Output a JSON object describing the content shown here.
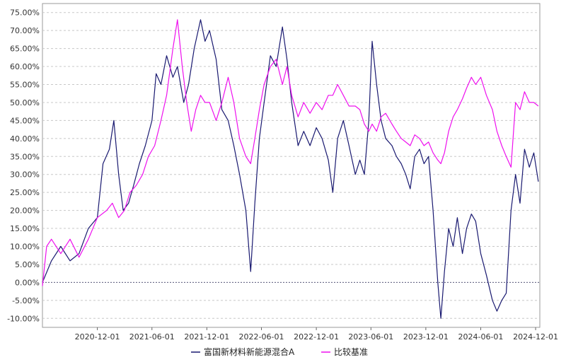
{
  "chart_data": {
    "type": "line",
    "title": "",
    "xlabel": "",
    "ylabel": "",
    "ylim": [
      -12.5,
      77.5
    ],
    "y_ticks": [
      "75.00%",
      "70.00%",
      "65.00%",
      "60.00%",
      "55.00%",
      "50.00%",
      "45.00%",
      "40.00%",
      "35.00%",
      "30.00%",
      "25.00%",
      "20.00%",
      "15.00%",
      "10.00%",
      "5.00%",
      "0.00%",
      "-5.00%",
      "-10.00%"
    ],
    "y_tick_values": [
      75,
      70,
      65,
      60,
      55,
      50,
      45,
      40,
      35,
      30,
      25,
      20,
      15,
      10,
      5,
      0,
      -5,
      -10
    ],
    "x_ticks": [
      "2020-12-01",
      "2021-06-01",
      "2021-12-01",
      "2022-06-01",
      "2022-12-01",
      "2023-06-01",
      "2023-12-01",
      "2024-06-01",
      "2024-12-01"
    ],
    "x_range": [
      "2020-06-01",
      "2024-12-15"
    ],
    "grid": "horizontal dashed",
    "legend_position": "bottom-center",
    "series": [
      {
        "name": "富国新材料新能源混合A",
        "color": "#191970",
        "points": [
          [
            "2020-06-01",
            0
          ],
          [
            "2020-07-01",
            6
          ],
          [
            "2020-08-01",
            10
          ],
          [
            "2020-09-01",
            6
          ],
          [
            "2020-10-01",
            8
          ],
          [
            "2020-11-01",
            15
          ],
          [
            "2020-12-01",
            18
          ],
          [
            "2020-12-20",
            33
          ],
          [
            "2021-01-10",
            37
          ],
          [
            "2021-01-25",
            45
          ],
          [
            "2021-02-10",
            30
          ],
          [
            "2021-02-25",
            20
          ],
          [
            "2021-03-15",
            22
          ],
          [
            "2021-04-01",
            27
          ],
          [
            "2021-04-20",
            33
          ],
          [
            "2021-05-10",
            38
          ],
          [
            "2021-06-01",
            45
          ],
          [
            "2021-06-15",
            58
          ],
          [
            "2021-07-01",
            55
          ],
          [
            "2021-07-20",
            63
          ],
          [
            "2021-08-10",
            57
          ],
          [
            "2021-08-25",
            60
          ],
          [
            "2021-09-15",
            50
          ],
          [
            "2021-10-01",
            55
          ],
          [
            "2021-10-20",
            65
          ],
          [
            "2021-11-10",
            73
          ],
          [
            "2021-11-25",
            67
          ],
          [
            "2021-12-10",
            70
          ],
          [
            "2022-01-01",
            62
          ],
          [
            "2022-01-20",
            48
          ],
          [
            "2022-02-10",
            45
          ],
          [
            "2022-03-01",
            38
          ],
          [
            "2022-03-20",
            30
          ],
          [
            "2022-04-10",
            20
          ],
          [
            "2022-04-26",
            3
          ],
          [
            "2022-05-10",
            22
          ],
          [
            "2022-05-25",
            40
          ],
          [
            "2022-06-10",
            50
          ],
          [
            "2022-07-01",
            63
          ],
          [
            "2022-07-20",
            60
          ],
          [
            "2022-08-10",
            71
          ],
          [
            "2022-08-25",
            62
          ],
          [
            "2022-09-10",
            50
          ],
          [
            "2022-10-01",
            38
          ],
          [
            "2022-10-20",
            42
          ],
          [
            "2022-11-10",
            38
          ],
          [
            "2022-12-01",
            43
          ],
          [
            "2022-12-20",
            40
          ],
          [
            "2023-01-10",
            34
          ],
          [
            "2023-01-25",
            25
          ],
          [
            "2023-02-10",
            40
          ],
          [
            "2023-03-01",
            45
          ],
          [
            "2023-03-20",
            38
          ],
          [
            "2023-04-10",
            30
          ],
          [
            "2023-04-25",
            34
          ],
          [
            "2023-05-10",
            30
          ],
          [
            "2023-05-25",
            45
          ],
          [
            "2023-06-05",
            67
          ],
          [
            "2023-06-20",
            55
          ],
          [
            "2023-07-05",
            45
          ],
          [
            "2023-07-20",
            40
          ],
          [
            "2023-08-10",
            38
          ],
          [
            "2023-08-25",
            35
          ],
          [
            "2023-09-10",
            33
          ],
          [
            "2023-09-25",
            30
          ],
          [
            "2023-10-10",
            26
          ],
          [
            "2023-10-25",
            35
          ],
          [
            "2023-11-10",
            37
          ],
          [
            "2023-11-25",
            33
          ],
          [
            "2023-12-10",
            35
          ],
          [
            "2023-12-25",
            20
          ],
          [
            "2024-01-10",
            0
          ],
          [
            "2024-01-20",
            -10
          ],
          [
            "2024-02-01",
            3
          ],
          [
            "2024-02-15",
            15
          ],
          [
            "2024-03-01",
            10
          ],
          [
            "2024-03-15",
            18
          ],
          [
            "2024-04-01",
            8
          ],
          [
            "2024-04-15",
            15
          ],
          [
            "2024-05-01",
            19
          ],
          [
            "2024-05-15",
            17
          ],
          [
            "2024-06-01",
            8
          ],
          [
            "2024-06-20",
            2
          ],
          [
            "2024-07-10",
            -5
          ],
          [
            "2024-07-25",
            -8
          ],
          [
            "2024-08-10",
            -5
          ],
          [
            "2024-08-25",
            -3
          ],
          [
            "2024-09-10",
            20
          ],
          [
            "2024-09-25",
            30
          ],
          [
            "2024-10-10",
            22
          ],
          [
            "2024-10-25",
            37
          ],
          [
            "2024-11-10",
            32
          ],
          [
            "2024-11-25",
            36
          ],
          [
            "2024-12-10",
            28
          ]
        ]
      },
      {
        "name": "比较基准",
        "color": "#ee10ee",
        "points": [
          [
            "2020-06-01",
            -1
          ],
          [
            "2020-06-15",
            10
          ],
          [
            "2020-07-01",
            12
          ],
          [
            "2020-08-01",
            8
          ],
          [
            "2020-09-01",
            12
          ],
          [
            "2020-10-01",
            7
          ],
          [
            "2020-11-01",
            12
          ],
          [
            "2020-12-01",
            18
          ],
          [
            "2021-01-01",
            20
          ],
          [
            "2021-01-20",
            22
          ],
          [
            "2021-02-10",
            18
          ],
          [
            "2021-03-01",
            20
          ],
          [
            "2021-03-20",
            25
          ],
          [
            "2021-04-10",
            27
          ],
          [
            "2021-05-01",
            30
          ],
          [
            "2021-05-20",
            35
          ],
          [
            "2021-06-10",
            38
          ],
          [
            "2021-07-01",
            45
          ],
          [
            "2021-07-20",
            52
          ],
          [
            "2021-08-10",
            65
          ],
          [
            "2021-08-25",
            73
          ],
          [
            "2021-09-10",
            60
          ],
          [
            "2021-09-25",
            50
          ],
          [
            "2021-10-10",
            42
          ],
          [
            "2021-10-25",
            48
          ],
          [
            "2021-11-10",
            52
          ],
          [
            "2021-11-25",
            50
          ],
          [
            "2021-12-10",
            50
          ],
          [
            "2022-01-01",
            45
          ],
          [
            "2022-01-20",
            50
          ],
          [
            "2022-02-10",
            57
          ],
          [
            "2022-03-01",
            50
          ],
          [
            "2022-03-20",
            40
          ],
          [
            "2022-04-10",
            35
          ],
          [
            "2022-04-26",
            33
          ],
          [
            "2022-05-10",
            40
          ],
          [
            "2022-05-25",
            48
          ],
          [
            "2022-06-10",
            55
          ],
          [
            "2022-07-01",
            60
          ],
          [
            "2022-07-20",
            62
          ],
          [
            "2022-08-10",
            55
          ],
          [
            "2022-08-25",
            60
          ],
          [
            "2022-09-10",
            52
          ],
          [
            "2022-10-01",
            46
          ],
          [
            "2022-10-20",
            50
          ],
          [
            "2022-11-10",
            47
          ],
          [
            "2022-12-01",
            50
          ],
          [
            "2022-12-20",
            48
          ],
          [
            "2023-01-10",
            52
          ],
          [
            "2023-01-25",
            52
          ],
          [
            "2023-02-10",
            55
          ],
          [
            "2023-03-01",
            52
          ],
          [
            "2023-03-20",
            49
          ],
          [
            "2023-04-10",
            49
          ],
          [
            "2023-04-25",
            48
          ],
          [
            "2023-05-10",
            44
          ],
          [
            "2023-05-25",
            42
          ],
          [
            "2023-06-05",
            44
          ],
          [
            "2023-06-20",
            42
          ],
          [
            "2023-07-05",
            46
          ],
          [
            "2023-07-20",
            47
          ],
          [
            "2023-08-10",
            44
          ],
          [
            "2023-08-25",
            42
          ],
          [
            "2023-09-10",
            40
          ],
          [
            "2023-09-25",
            39
          ],
          [
            "2023-10-10",
            38
          ],
          [
            "2023-10-25",
            41
          ],
          [
            "2023-11-10",
            40
          ],
          [
            "2023-11-25",
            38
          ],
          [
            "2023-12-10",
            39
          ],
          [
            "2023-12-25",
            36
          ],
          [
            "2024-01-10",
            34
          ],
          [
            "2024-01-20",
            33
          ],
          [
            "2024-02-01",
            36
          ],
          [
            "2024-02-15",
            42
          ],
          [
            "2024-03-01",
            46
          ],
          [
            "2024-03-15",
            48
          ],
          [
            "2024-04-01",
            51
          ],
          [
            "2024-04-15",
            54
          ],
          [
            "2024-05-01",
            57
          ],
          [
            "2024-05-15",
            55
          ],
          [
            "2024-06-01",
            57
          ],
          [
            "2024-06-20",
            52
          ],
          [
            "2024-07-10",
            48
          ],
          [
            "2024-07-25",
            42
          ],
          [
            "2024-08-10",
            38
          ],
          [
            "2024-08-25",
            35
          ],
          [
            "2024-09-10",
            32
          ],
          [
            "2024-09-25",
            50
          ],
          [
            "2024-10-10",
            48
          ],
          [
            "2024-10-25",
            53
          ],
          [
            "2024-11-10",
            50
          ],
          [
            "2024-11-25",
            50
          ],
          [
            "2024-12-10",
            49
          ]
        ]
      }
    ]
  },
  "legend": {
    "items": [
      {
        "label": "富国新材料新能源混合A",
        "color": "#191970"
      },
      {
        "label": "比较基准",
        "color": "#ee10ee"
      }
    ]
  }
}
